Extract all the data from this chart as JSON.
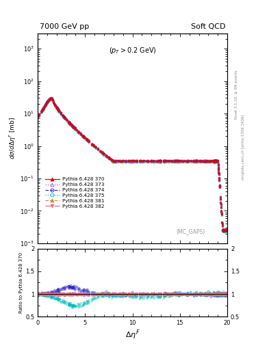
{
  "title_left": "7000 GeV pp",
  "title_right": "Soft QCD",
  "annotation": "(p_{T} > 0.2 GeV)",
  "mc_label": "(MC_GAPS)",
  "xlabel": "Δη^F",
  "ylabel_main": "dσ/dΔη^F [mb]",
  "ylabel_ratio": "Ratio to Pythia 6.428 370",
  "right_label1": "Rivet 3.1.10, ≥ 3M events",
  "right_label2": "mcplots.cern.ch [arXiv:1306.3436]",
  "xlim": [
    0,
    20
  ],
  "ylim_main": [
    0.001,
    3000.0
  ],
  "ylim_ratio": [
    0.5,
    2.0
  ],
  "series": [
    {
      "label": "Pythia 6.428 370",
      "color": "#dd0000",
      "linestyle": "-",
      "marker": "^",
      "filled": true,
      "lw": 0.8,
      "ms": 2.0
    },
    {
      "label": "Pythia 6.428 373",
      "color": "#cc44cc",
      "linestyle": ":",
      "marker": "^",
      "filled": false,
      "lw": 0.8,
      "ms": 2.0
    },
    {
      "label": "Pythia 6.428 374",
      "color": "#2222cc",
      "linestyle": "--",
      "marker": "o",
      "filled": false,
      "lw": 0.8,
      "ms": 2.0
    },
    {
      "label": "Pythia 6.428 375",
      "color": "#00bbbb",
      "linestyle": ":",
      "marker": "o",
      "filled": false,
      "lw": 0.8,
      "ms": 2.0
    },
    {
      "label": "Pythia 6.428 381",
      "color": "#cc8833",
      "linestyle": "--",
      "marker": "^",
      "filled": true,
      "lw": 0.8,
      "ms": 2.0
    },
    {
      "label": "Pythia 6.428 382",
      "color": "#ee6688",
      "linestyle": "-.",
      "marker": "v",
      "filled": true,
      "lw": 0.8,
      "ms": 2.0
    }
  ],
  "background_color": "#ffffff"
}
